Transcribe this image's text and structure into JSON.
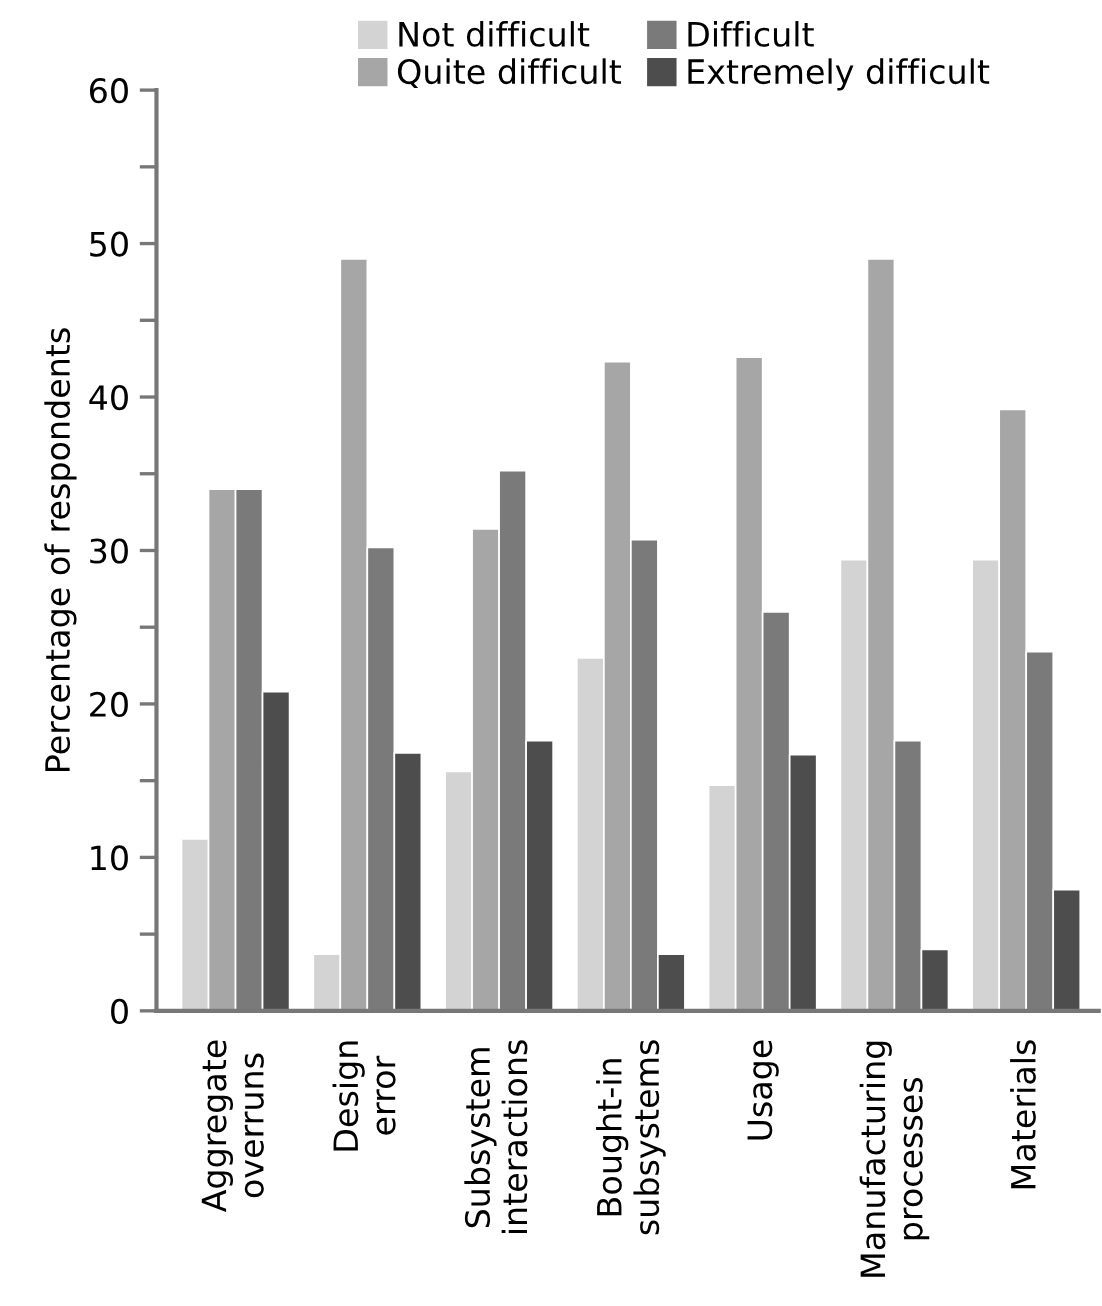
{
  "chart_data": {
    "type": "bar",
    "ylabel": "Percentage of respondents",
    "categories": [
      "Aggregate\noverruns",
      "Design\nerror",
      "Subsystem\ninteractions",
      "Bought-in\nsubsystems",
      "Usage",
      "Manufacturing\nprocesses",
      "Materials"
    ],
    "series": [
      {
        "name": "Not difficult",
        "color": "#d3d3d3",
        "values": [
          11.2,
          3.7,
          15.6,
          23,
          14.7,
          29.4,
          29.4
        ]
      },
      {
        "name": "Quite difficult",
        "color": "#a6a6a6",
        "values": [
          34,
          49,
          31.4,
          42.3,
          42.6,
          49,
          39.2
        ]
      },
      {
        "name": "Difficult",
        "color": "#7a7a7a",
        "values": [
          34,
          30.2,
          35.2,
          30.7,
          26,
          17.6,
          23.4
        ]
      },
      {
        "name": "Extremely difficult",
        "color": "#4d4d4d",
        "values": [
          20.8,
          16.8,
          17.6,
          3.7,
          16.7,
          4,
          7.9
        ]
      }
    ],
    "ylim": [
      0,
      60
    ],
    "yticks": [
      0,
      {
        "value": 5,
        "label": null
      },
      10,
      {
        "value": 15,
        "label": null
      },
      20,
      {
        "value": 25,
        "label": null
      },
      30,
      {
        "value": 35,
        "label": null
      },
      40,
      {
        "value": 45,
        "label": null
      },
      50,
      {
        "value": 55,
        "label": null
      },
      60
    ],
    "grid": false,
    "legend": "top"
  }
}
